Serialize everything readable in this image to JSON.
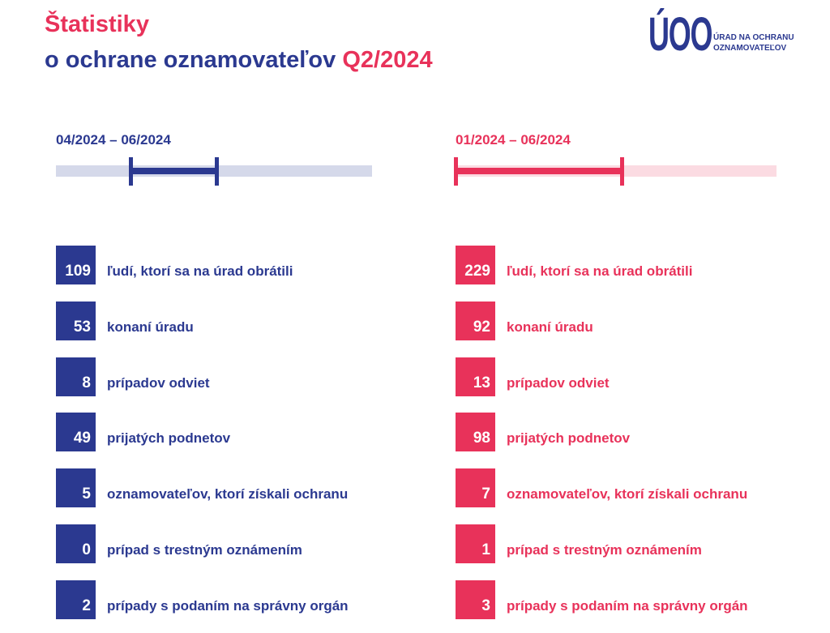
{
  "header": {
    "title_line1": "Štatistiky",
    "title_line2": "o ochrane oznamovateľov",
    "title_highlight": "Q2/2024"
  },
  "logo": {
    "mark": "ÚOO",
    "line1": "ÚRAD NA OCHRANU",
    "line2": "OZNAMOVATEĽOV"
  },
  "columns": [
    {
      "period": "04/2024 – 06/2024",
      "color": "#2b3990",
      "rows": [
        {
          "value": 109,
          "label": "ľudí, ktorí sa na úrad obrátili"
        },
        {
          "value": 53,
          "label": "konaní úradu"
        },
        {
          "value": 8,
          "label": "prípadov odviet"
        },
        {
          "value": 49,
          "label": "prijatých podnetov"
        },
        {
          "value": 5,
          "label": "oznamovateľov, ktorí získali ochranu"
        },
        {
          "value": 0,
          "label": "prípad s trestným oznámením"
        },
        {
          "value": 2,
          "label": "prípady s podaním na správny orgán"
        }
      ]
    },
    {
      "period": "01/2024 – 06/2024",
      "color": "#e8325a",
      "rows": [
        {
          "value": 229,
          "label": "ľudí, ktorí sa na úrad obrátili"
        },
        {
          "value": 92,
          "label": "konaní úradu"
        },
        {
          "value": 13,
          "label": "prípadov odviet"
        },
        {
          "value": 98,
          "label": "prijatých podnetov"
        },
        {
          "value": 7,
          "label": "oznamovateľov, ktorí získali ochranu"
        },
        {
          "value": 1,
          "label": "prípad s trestným oznámením"
        },
        {
          "value": 3,
          "label": "prípady s podaním na správny orgán"
        }
      ]
    }
  ]
}
